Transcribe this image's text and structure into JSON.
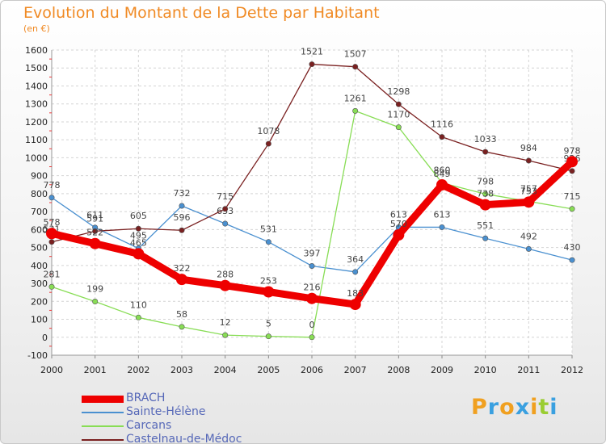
{
  "title": "Evolution du Montant de la Dette par Habitant",
  "subtitle": "(en €)",
  "logo": {
    "letters": [
      "P",
      "r",
      "o",
      "x",
      "i",
      "t",
      "i"
    ],
    "colors": [
      "#f0a020",
      "#3aa0e0",
      "#f0a020",
      "#3aa0e0",
      "#f0a020",
      "#9acd32",
      "#3aa0e0"
    ]
  },
  "chart_data": {
    "type": "line",
    "x": [
      2000,
      2001,
      2002,
      2003,
      2004,
      2005,
      2006,
      2007,
      2008,
      2009,
      2010,
      2011,
      2012
    ],
    "ylim": [
      -100,
      1600
    ],
    "yticks": [
      -100,
      0,
      100,
      200,
      300,
      400,
      500,
      600,
      700,
      800,
      900,
      1000,
      1100,
      1200,
      1300,
      1400,
      1500,
      1600
    ],
    "grid": true,
    "legend_position": "bottom-left",
    "series": [
      {
        "name": "BRACH",
        "color": "#ee0000",
        "values": [
          578,
          522,
          465,
          322,
          288,
          253,
          216,
          183,
          570,
          849,
          738,
          753,
          978
        ]
      },
      {
        "name": "Sainte-Hélène",
        "color": "#4a90d0",
        "values": [
          778,
          611,
          495,
          732,
          633,
          531,
          397,
          364,
          613,
          613,
          551,
          492,
          430
        ]
      },
      {
        "name": "Carcans",
        "color": "#88dd55",
        "values": [
          281,
          199,
          110,
          58,
          12,
          5,
          0,
          1261,
          1170,
          860,
          798,
          757,
          715
        ]
      },
      {
        "name": "Castelnau-de-Médoc",
        "color": "#7a2020",
        "values": [
          531,
          591,
          605,
          596,
          715,
          1078,
          1521,
          1507,
          1298,
          1116,
          1033,
          984,
          926
        ]
      }
    ]
  }
}
